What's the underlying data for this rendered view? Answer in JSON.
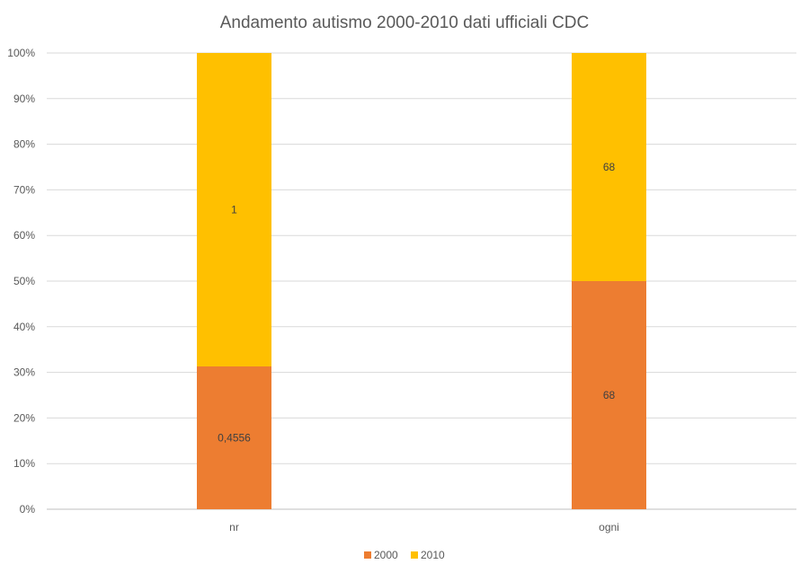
{
  "chart_data": {
    "type": "bar",
    "stacked_percent": true,
    "title": "Andamento autismo 2000-2010 dati ufficiali CDC",
    "categories": [
      "nr",
      "ogni"
    ],
    "series": [
      {
        "name": "2000",
        "color": "#ED7D31",
        "values": [
          0.4556,
          68
        ],
        "labels": [
          "0,4556",
          "68"
        ]
      },
      {
        "name": "2010",
        "color": "#FFC000",
        "values": [
          1,
          68
        ],
        "labels": [
          "1",
          "68"
        ]
      }
    ],
    "y_ticks": [
      "0%",
      "10%",
      "20%",
      "30%",
      "40%",
      "50%",
      "60%",
      "70%",
      "80%",
      "90%",
      "100%"
    ],
    "ylim": [
      0,
      100
    ],
    "grid": true,
    "legend_position": "bottom"
  }
}
